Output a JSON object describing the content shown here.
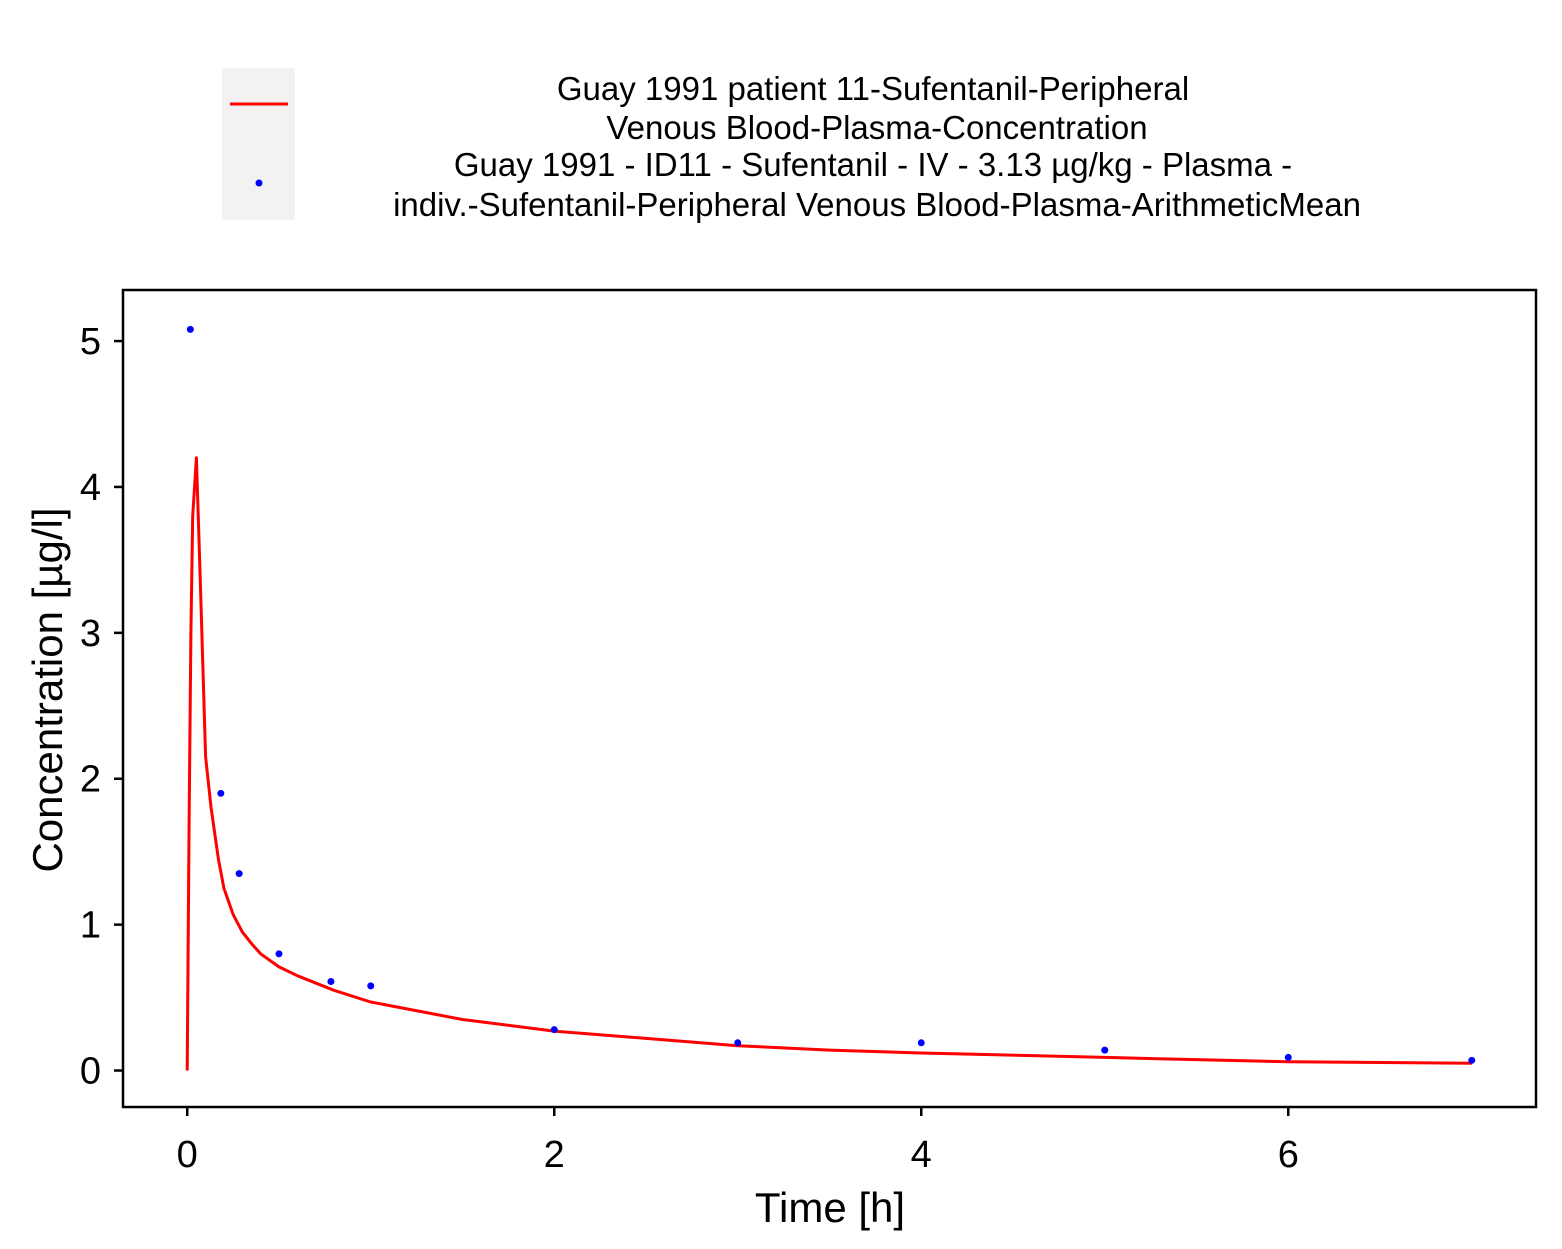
{
  "chart_data": {
    "type": "line",
    "xlabel": "Time [h]",
    "ylabel": "Concentration [µg/l]",
    "xlim": [
      -0.35,
      7.35
    ],
    "ylim": [
      -0.25,
      5.35
    ],
    "xticks": [
      0,
      2,
      4,
      6
    ],
    "yticks": [
      0,
      1,
      2,
      3,
      4,
      5
    ],
    "grid": false,
    "legend_position": "top",
    "series": [
      {
        "name": "Guay 1991 patient 11-Sufentanil-Peripheral Venous Blood-Plasma-Concentration",
        "legend_lines": [
          "Guay 1991 patient 11-Sufentanil-Peripheral",
          "Venous Blood-Plasma-Concentration"
        ],
        "kind": "line",
        "color": "#ff0000",
        "x": [
          0,
          0.01,
          0.02,
          0.03,
          0.05,
          0.07,
          0.1,
          0.13,
          0.17,
          0.2,
          0.25,
          0.3,
          0.35,
          0.4,
          0.5,
          0.6,
          0.8,
          1.0,
          1.5,
          2.0,
          2.5,
          3.0,
          3.5,
          4.0,
          5.0,
          6.0,
          7.0
        ],
        "y": [
          0.0,
          1.7,
          3.0,
          3.8,
          4.2,
          3.4,
          2.15,
          1.8,
          1.45,
          1.25,
          1.07,
          0.95,
          0.87,
          0.8,
          0.71,
          0.65,
          0.55,
          0.47,
          0.35,
          0.27,
          0.22,
          0.17,
          0.14,
          0.12,
          0.09,
          0.06,
          0.05
        ]
      },
      {
        "name": "Guay 1991 - ID11 - Sufentanil - IV - 3.13 µg/kg - Plasma - indiv.-Sufentanil-Peripheral Venous Blood-Plasma-ArithmeticMean",
        "legend_lines": [
          "Guay 1991 - ID11 - Sufentanil - IV - 3.13 µg/kg - Plasma -",
          "indiv.-Sufentanil-Peripheral Venous Blood-Plasma-ArithmeticMean"
        ],
        "kind": "scatter",
        "color": "#0000ff",
        "x": [
          0.017,
          0.183,
          0.283,
          0.5,
          0.783,
          1.0,
          2.0,
          3.0,
          4.0,
          5.0,
          6.0,
          7.0
        ],
        "y": [
          5.08,
          1.9,
          1.35,
          0.8,
          0.61,
          0.58,
          0.28,
          0.19,
          0.19,
          0.14,
          0.09,
          0.07
        ]
      }
    ]
  }
}
